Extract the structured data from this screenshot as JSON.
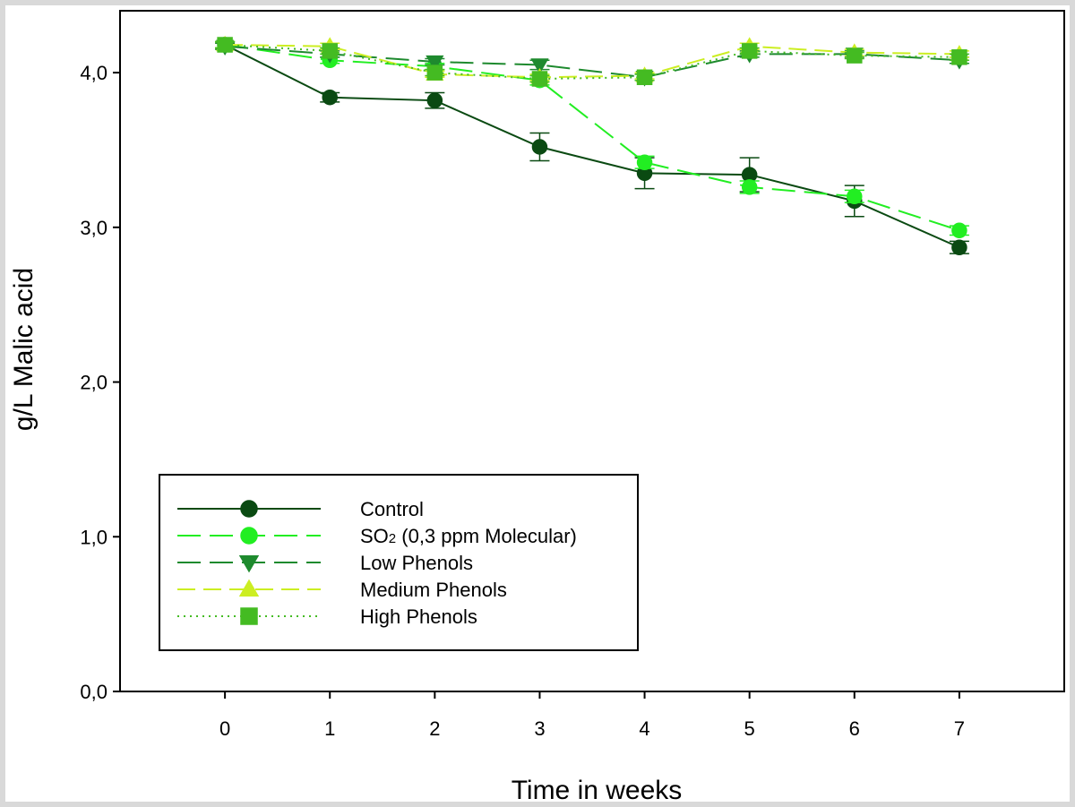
{
  "chart_data": {
    "type": "line",
    "title": "",
    "xlabel": "Time in weeks",
    "ylabel": "g/L Malic acid",
    "x": [
      0,
      1,
      2,
      3,
      4,
      5,
      6,
      7
    ],
    "xlim": [
      -1,
      8
    ],
    "ylim": [
      0,
      4.4
    ],
    "x_ticks": [
      "0",
      "1",
      "2",
      "3",
      "4",
      "5",
      "6",
      "7"
    ],
    "y_ticks": [
      {
        "value": 0,
        "label": "0,0"
      },
      {
        "value": 1,
        "label": "1,0"
      },
      {
        "value": 2,
        "label": "2,0"
      },
      {
        "value": 3,
        "label": "3,0"
      },
      {
        "value": 4,
        "label": "4,0"
      }
    ],
    "legend_position": "lower-left",
    "series": [
      {
        "name": "Control",
        "legend_label": "Control",
        "color": "#0a4a12",
        "marker": "circle",
        "dash": "solid",
        "values": [
          4.18,
          3.84,
          3.82,
          3.52,
          3.35,
          3.34,
          3.17,
          2.87
        ],
        "errors": [
          0.02,
          0.03,
          0.05,
          0.09,
          0.1,
          0.11,
          0.1,
          0.04
        ]
      },
      {
        "name": "SO2 (0,3 ppm Molecular)",
        "legend_label": "SO",
        "legend_subscript": "2",
        "legend_suffix": " (0,3 ppm Molecular)",
        "color": "#22ee22",
        "marker": "circle",
        "dash": "long",
        "values": [
          4.18,
          4.08,
          4.04,
          3.95,
          3.42,
          3.26,
          3.2,
          2.98
        ],
        "errors": [
          0.02,
          0.02,
          0.02,
          0.03,
          0.04,
          0.04,
          0.04,
          0.03
        ]
      },
      {
        "name": "Low Phenols",
        "legend_label": "Low Phenols",
        "color": "#1e8a2e",
        "marker": "triangle-down",
        "dash": "long",
        "values": [
          4.17,
          4.12,
          4.07,
          4.05,
          3.97,
          4.12,
          4.12,
          4.08
        ],
        "errors": [
          0.02,
          0.02,
          0.02,
          0.03,
          0.02,
          0.02,
          0.02,
          0.02
        ]
      },
      {
        "name": "Medium Phenols",
        "legend_label": "Medium Phenols",
        "color": "#ccee22",
        "marker": "triangle-up",
        "dash": "medium",
        "values": [
          4.18,
          4.17,
          3.99,
          3.97,
          3.98,
          4.17,
          4.13,
          4.12
        ],
        "errors": [
          0.02,
          0.02,
          0.02,
          0.02,
          0.02,
          0.02,
          0.02,
          0.02
        ]
      },
      {
        "name": "High Phenols",
        "legend_label": "High Phenols",
        "color": "#44bb22",
        "marker": "square",
        "dash": "dotted",
        "values": [
          4.18,
          4.14,
          4.0,
          3.96,
          3.97,
          4.14,
          4.11,
          4.1
        ],
        "errors": [
          0.02,
          0.02,
          0.02,
          0.02,
          0.02,
          0.02,
          0.02,
          0.02
        ]
      }
    ]
  }
}
